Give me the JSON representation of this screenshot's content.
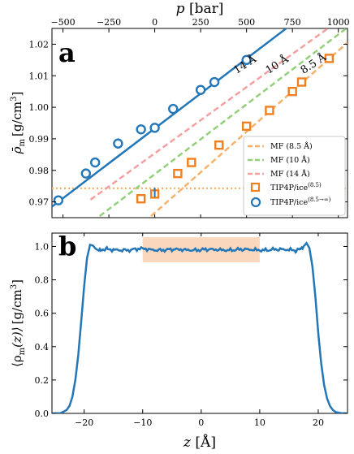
{
  "chart_data": [
    {
      "panel_label": "a",
      "type": "scatter",
      "ylabel": "ρ̄m [g/cm3]",
      "ylabel_parts": {
        "main": "ρ̄",
        "sub": "m",
        "unit": "[g/cm",
        "sup": "3",
        "close": "]"
      },
      "top_xlabel": "p [bar]",
      "top_xlabel_parts": {
        "var": "p",
        "unit": "[bar]"
      },
      "xlim": [
        -560,
        1050
      ],
      "ylim": [
        0.965,
        1.025
      ],
      "xticks_top": [
        -500,
        -250,
        0,
        250,
        500,
        750,
        1000
      ],
      "xtick_labels_top": [
        "−500",
        "−250",
        "0",
        "250",
        "500",
        "750",
        "1000"
      ],
      "yticks": [
        0.97,
        0.98,
        0.99,
        1.0,
        1.01,
        1.02
      ],
      "ytick_labels": [
        "0.97",
        "0.98",
        "0.99",
        "1.00",
        "1.01",
        "1.02"
      ],
      "reference_line": {
        "y": 0.9743,
        "color": "#f6b26b",
        "style": "dotted"
      },
      "series": [
        {
          "name": "MF (8.5 Å)",
          "kind": "dashed-line",
          "color": "#f6b26b",
          "x": [
            -20,
            1050
          ],
          "y": [
            0.9655,
            1.0205
          ]
        },
        {
          "name": "MF (10 Å)",
          "kind": "dashed-line",
          "color": "#93d07a",
          "x": [
            -300,
            1050
          ],
          "y": [
            0.9655,
            1.0253
          ]
        },
        {
          "name": "MF (14 Å)",
          "kind": "dashed-line",
          "color": "#f4a0a0",
          "x": [
            -350,
            1050
          ],
          "y": [
            0.9707,
            1.0295
          ]
        },
        {
          "name": "TIP4P/ice",
          "name_sup": "(8.5)",
          "kind": "squares",
          "color": "#f07f1e",
          "x": [
            -75,
            0,
            125,
            200,
            350,
            500,
            625,
            750,
            800,
            950
          ],
          "y": [
            0.971,
            0.9725,
            0.979,
            0.9825,
            0.988,
            0.994,
            0.999,
            1.005,
            1.008,
            1.0155
          ]
        },
        {
          "name": "TIP4P/ice",
          "name_sup": "(8.5→∞)",
          "kind": "circles",
          "color": "#2376b7",
          "x": [
            -525,
            -375,
            -325,
            -200,
            -75,
            0,
            100,
            250,
            325,
            500
          ],
          "y": [
            0.9705,
            0.979,
            0.9825,
            0.9885,
            0.993,
            0.9935,
            0.9995,
            1.0055,
            1.008,
            1.015
          ]
        },
        {
          "name": "fit",
          "kind": "solid-line",
          "color": "#2376b7",
          "x": [
            -560,
            750
          ],
          "y": [
            0.9685,
            1.0265
          ]
        }
      ],
      "annotations": [
        {
          "text": "14 Å",
          "x": 445,
          "y": 1.0105,
          "angle": -33
        },
        {
          "text": "10 Å",
          "x": 620,
          "y": 1.0105,
          "angle": -33
        },
        {
          "text": "8.5 Å",
          "x": 810,
          "y": 1.0105,
          "angle": -33
        }
      ],
      "legend_position": "lower right"
    },
    {
      "panel_label": "b",
      "type": "line",
      "xlabel": "z [Å]",
      "xlabel_parts": {
        "var": "z",
        "unit": "[Å]"
      },
      "ylabel": "⟨ρm(z)⟩ [g/cm3]",
      "ylabel_parts": {
        "open": "⟨ρ",
        "sub": "m",
        "arg": "(z)⟩",
        "unit": "[g/cm",
        "sup": "3",
        "close": "]"
      },
      "xlim": [
        -25.5,
        25
      ],
      "ylim": [
        0.0,
        1.08
      ],
      "xticks": [
        -20,
        -10,
        0,
        10,
        20
      ],
      "xtick_labels": [
        "−20",
        "−10",
        "0",
        "10",
        "20"
      ],
      "yticks": [
        0.0,
        0.2,
        0.4,
        0.6,
        0.8,
        1.0
      ],
      "ytick_labels": [
        "0.0",
        "0.2",
        "0.4",
        "0.6",
        "0.8",
        "1.0"
      ],
      "shaded_region": {
        "x": [
          -10,
          10
        ],
        "y": [
          0.905,
          1.055
        ],
        "color": "#fbd7bd"
      },
      "series": [
        {
          "name": "density profile",
          "color": "#2376b7",
          "x": [
            -25.5,
            -24,
            -23,
            -22.5,
            -22,
            -21.5,
            -21,
            -20.5,
            -20,
            -19.5,
            -19,
            -18.5,
            -18,
            -17.5,
            -17,
            -16,
            -14,
            -12,
            -10,
            -8,
            -6,
            -4,
            -2,
            0,
            2,
            4,
            6,
            8,
            10,
            12,
            14,
            16,
            17,
            17.5,
            18,
            18.5,
            19,
            19.5,
            20,
            20.5,
            21,
            21.5,
            22,
            22.5,
            23,
            24,
            25
          ],
          "y": [
            0.0,
            0.002,
            0.02,
            0.045,
            0.1,
            0.2,
            0.35,
            0.55,
            0.76,
            0.93,
            1.01,
            1.005,
            0.985,
            0.975,
            0.98,
            0.985,
            0.975,
            0.98,
            0.99,
            0.975,
            0.98,
            0.985,
            0.975,
            0.98,
            0.985,
            0.975,
            0.98,
            0.985,
            0.975,
            0.98,
            0.985,
            0.975,
            0.985,
            1.0,
            1.02,
            0.99,
            0.88,
            0.7,
            0.48,
            0.3,
            0.17,
            0.09,
            0.045,
            0.02,
            0.008,
            0.001,
            0.0
          ]
        }
      ]
    }
  ]
}
